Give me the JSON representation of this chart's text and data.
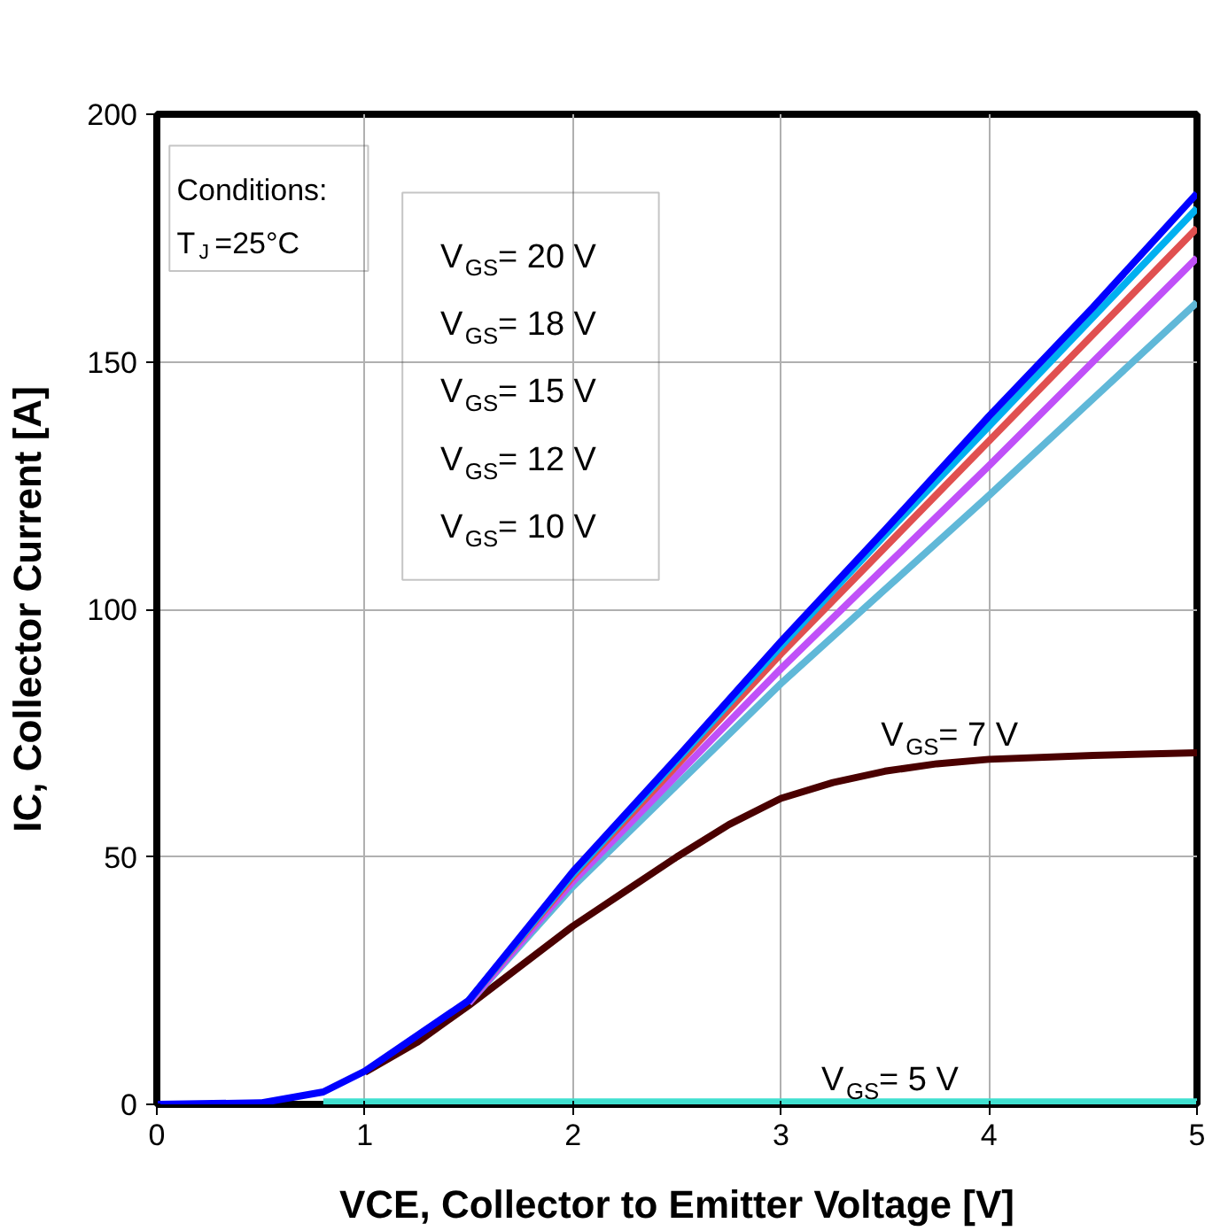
{
  "chart_data": {
    "type": "line",
    "xlabel": "VCE, Collector to Emitter Voltage [V]",
    "ylabel": "IC, Collector Current [A]",
    "x": [
      0,
      0.5,
      0.8,
      1,
      1.5,
      2,
      2.5,
      3,
      3.5,
      4,
      4.5,
      5
    ],
    "series": [
      {
        "color": "#0000ff",
        "values": [
          0,
          0.3,
          2.5,
          6.7,
          21,
          47,
          70,
          93.5,
          116,
          139,
          161,
          184
        ]
      },
      {
        "color": "#00b0f0",
        "values": [
          null,
          null,
          null,
          null,
          21,
          46.5,
          69.5,
          92.5,
          115,
          137,
          159,
          181
        ]
      },
      {
        "color": "#e05050",
        "values": [
          null,
          null,
          null,
          null,
          21,
          46,
          68.5,
          91,
          112.5,
          134,
          155.5,
          177
        ]
      },
      {
        "color": "#c050f8",
        "values": [
          null,
          null,
          null,
          null,
          20.5,
          45,
          66.5,
          88,
          108.5,
          129,
          150,
          171
        ]
      },
      {
        "color": "#60b8d8",
        "values": [
          null,
          null,
          null,
          null,
          20.5,
          44,
          64.5,
          85,
          104,
          123,
          142.5,
          162
        ]
      },
      {
        "color": "#4a0000",
        "x": [
          1,
          1.25,
          1.5,
          1.75,
          2,
          2.25,
          2.5,
          2.75,
          3,
          3.25,
          3.5,
          3.75,
          4,
          4.5,
          5
        ],
        "values": [
          6.5,
          12.5,
          20,
          28,
          36,
          43,
          50,
          56.5,
          61.8,
          65,
          67.3,
          68.8,
          69.7,
          70.5,
          71
        ]
      },
      {
        "color": "#40e0d0",
        "values": [
          null,
          null,
          0.5,
          0.5,
          0.5,
          0.5,
          0.5,
          0.5,
          0.5,
          0.5,
          0.5,
          0.5
        ]
      }
    ],
    "xlim": [
      0,
      5
    ],
    "ylim": [
      0,
      200
    ],
    "xticks": [
      0,
      1,
      2,
      3,
      4,
      5
    ],
    "yticks": [
      0,
      50,
      100,
      150,
      200
    ],
    "grid": true,
    "line_style": "solid",
    "annotations": [
      "Conditions:",
      "T$_{J}$=25°C",
      "V$_{GS}$= 20 V",
      "V$_{GS}$= 18 V",
      "V$_{GS}$= 15 V",
      "V$_{GS}$= 12 V",
      "V$_{GS}$= 10 V",
      "V$_{GS}$= 7 V",
      "V$_{GS}$= 5 V"
    ]
  }
}
